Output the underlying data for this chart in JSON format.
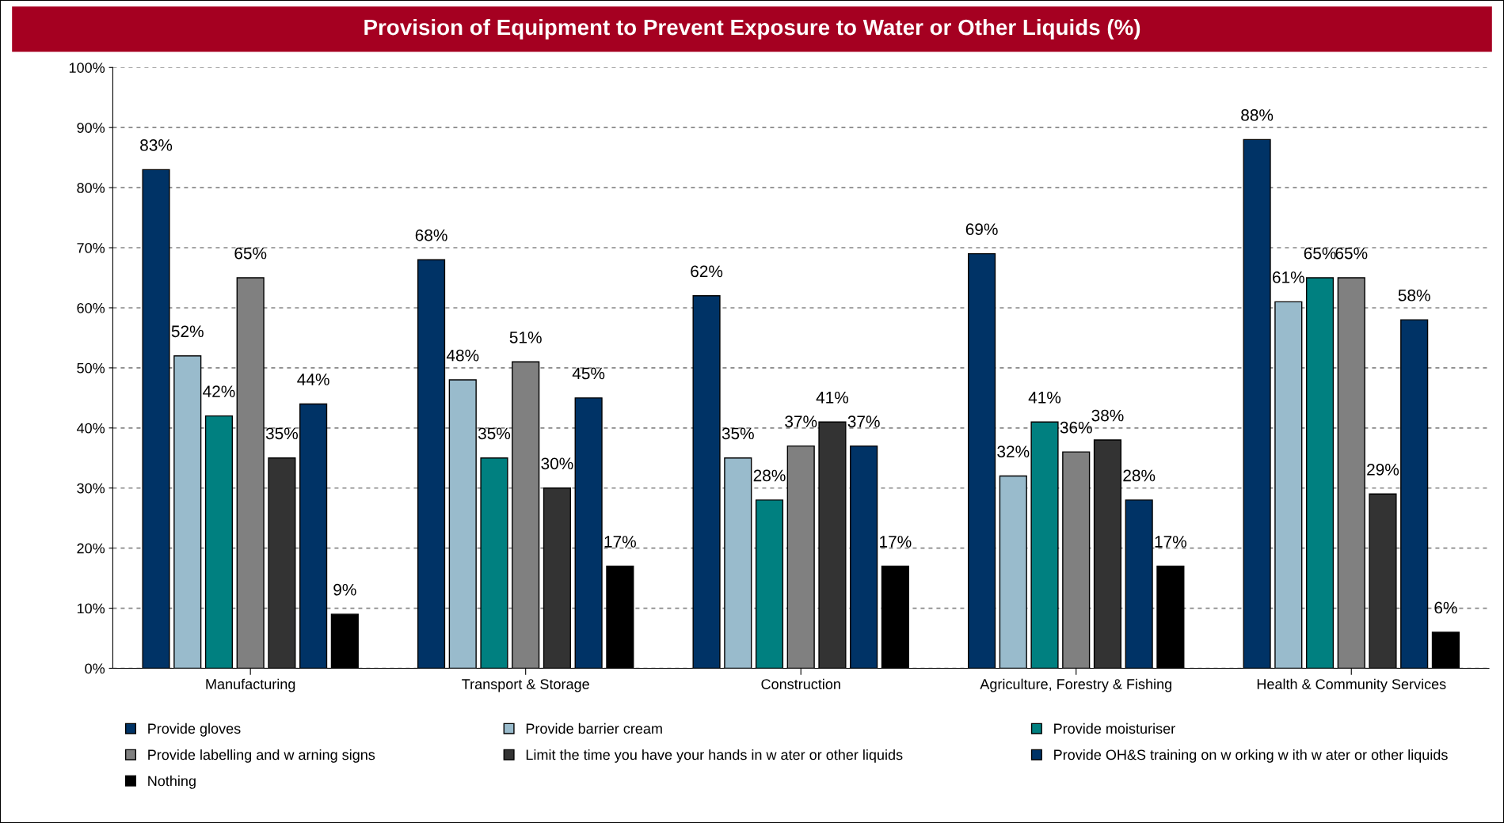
{
  "chart_data": {
    "type": "bar",
    "title": "Provision of Equipment to Prevent Exposure to Water or Other Liquids (%)",
    "categories": [
      "Manufacturing",
      "Transport & Storage",
      "Construction",
      "Agriculture, Forestry & Fishing",
      "Health & Community Services"
    ],
    "series": [
      {
        "name": "Provide gloves",
        "color": "#003366",
        "values": [
          83,
          68,
          62,
          69,
          88
        ],
        "value_labels": [
          "83%",
          "68%",
          "62%",
          "69%",
          "88%"
        ]
      },
      {
        "name": "Provide barrier cream",
        "color": "#99bbcc",
        "values": [
          52,
          48,
          35,
          32,
          61
        ],
        "value_labels": [
          "52%",
          "48%",
          "35%",
          "32%",
          "61%"
        ]
      },
      {
        "name": "Provide moisturiser",
        "color": "#008080",
        "values": [
          42,
          35,
          28,
          41,
          65
        ],
        "value_labels": [
          "42%",
          "35%",
          "28%",
          "41%",
          "65%"
        ]
      },
      {
        "name": "Provide labelling and w arning signs",
        "color": "#808080",
        "values": [
          65,
          51,
          37,
          36,
          65
        ],
        "value_labels": [
          "65%",
          "51%",
          "37%",
          "36%",
          "65%"
        ]
      },
      {
        "name": "Limit the time you have your hands in w ater or other liquids",
        "color": "#333333",
        "values": [
          35,
          30,
          41,
          38,
          29
        ],
        "value_labels": [
          "35%",
          "30%",
          "41%",
          "38%",
          "29%"
        ]
      },
      {
        "name": "Provide OH&S training on w orking w ith w ater or other liquids",
        "color": "#003366",
        "values": [
          44,
          45,
          37,
          28,
          58
        ],
        "value_labels": [
          "44%",
          "45%",
          "37%",
          "28%",
          "58%"
        ]
      },
      {
        "name": "Nothing",
        "color": "#000000",
        "values": [
          9,
          17,
          17,
          17,
          6
        ],
        "value_labels": [
          "9%",
          "17%",
          "17%",
          "17%",
          "6%"
        ]
      }
    ],
    "ylim": [
      0,
      100
    ],
    "yticks": [
      {
        "value": 0,
        "label": "0%"
      },
      {
        "value": 10,
        "label": "10%"
      },
      {
        "value": 20,
        "label": "20%"
      },
      {
        "value": 30,
        "label": "30%"
      },
      {
        "value": 40,
        "label": "40%"
      },
      {
        "value": 50,
        "label": "50%"
      },
      {
        "value": 60,
        "label": "60%"
      },
      {
        "value": 70,
        "label": "70%"
      },
      {
        "value": 80,
        "label": "80%"
      },
      {
        "value": 90,
        "label": "90%"
      },
      {
        "value": 100,
        "label": "100%"
      }
    ],
    "grid": "y",
    "legend": "bottom"
  }
}
